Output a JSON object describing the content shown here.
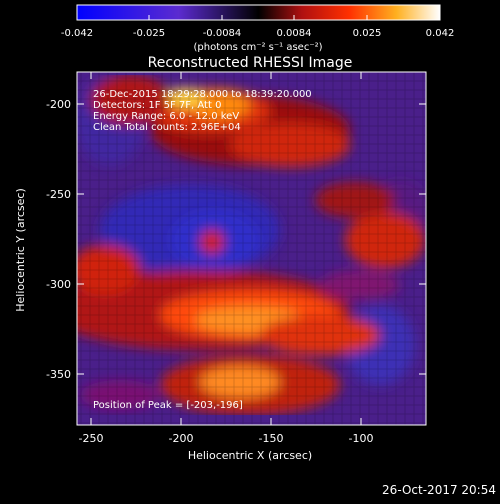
{
  "colorbar": {
    "ticks": [
      "-0.042",
      "-0.025",
      "-0.0084",
      "0.0084",
      "0.025",
      "0.042"
    ],
    "units": "(photons cm⁻² s⁻¹ asec⁻²)"
  },
  "title": "Reconstructed RHESSI Image",
  "annotations": {
    "time_range": "26-Dec-2015 18:29:28.000 to 18:39:20.000",
    "detectors": "Detectors: 1F 5F 7F, Att 0",
    "energy": "Energy Range: 6.0 - 12.0 keV",
    "clean": "Clean    Total counts: 2.96E+04",
    "peak": "Position of Peak = [-203,-196]"
  },
  "axes": {
    "xlabel": "Heliocentric X (arcsec)",
    "ylabel": "Heliocentric Y (arcsec)",
    "xticks": [
      "-250",
      "-200",
      "-150",
      "-100"
    ],
    "yticks": [
      "-200",
      "-250",
      "-300",
      "-350"
    ]
  },
  "footer": {
    "timestamp": "26-Oct-2017 20:54"
  }
}
